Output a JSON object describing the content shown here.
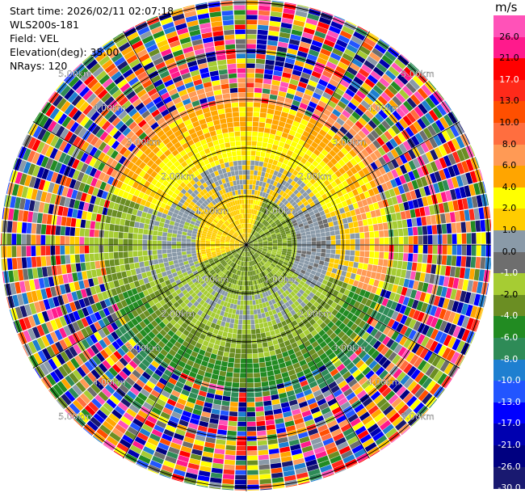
{
  "meta": {
    "start_time": "Start time: 2026/02/11 02:07:18",
    "instrument": "WLS200s-181",
    "field": "Field: VEL",
    "elevation": "Elevation(deg): 35.00",
    "nrays": "NRays: 120"
  },
  "ring_labels": [
    "1.00km",
    "2.00km",
    "3.00km",
    "4.00km",
    "5.00km"
  ],
  "colorbar": {
    "unit": "m/s",
    "labels": [
      "26.0",
      "21.0",
      "17.0",
      "13.0",
      "10.0",
      "8.0",
      "6.0",
      "4.0",
      "2.0",
      "1.0",
      "0.0",
      "-1.0",
      "-2.0",
      "-4.0",
      "-6.0",
      "-8.0",
      "-10.0",
      "-13.0",
      "-17.0",
      "-21.0",
      "-26.0",
      "-30.0"
    ],
    "colors": [
      "#ff52b8",
      "#ff1a8c",
      "#ff0000",
      "#ff2a1a",
      "#ff4f00",
      "#ff6e3f",
      "#ff9a55",
      "#ffa500",
      "#ffff00",
      "#ffcc00",
      "#8a9aa8",
      "#6e6e6e",
      "#a6cc33",
      "#6b8e23",
      "#228b22",
      "#2e8b57",
      "#1e7fd0",
      "#2255ff",
      "#0000ff",
      "#0000b0",
      "#000080",
      "#191970"
    ]
  }
}
